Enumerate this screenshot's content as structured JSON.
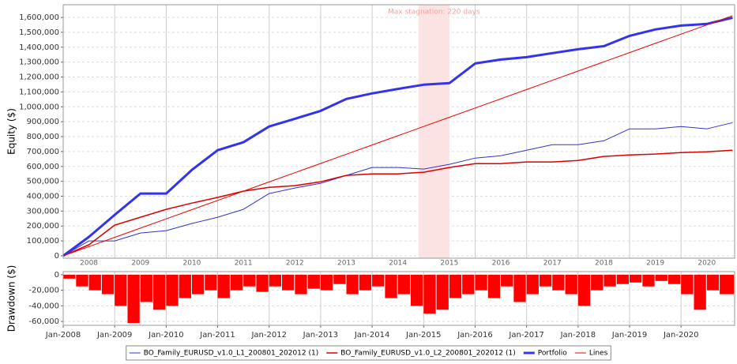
{
  "chart_data": [
    {
      "type": "line",
      "ylabel": "Equity ($)",
      "x": [
        2008,
        2008.5,
        2009,
        2009.5,
        2010,
        2010.5,
        2011,
        2011.5,
        2012,
        2012.5,
        2013,
        2013.5,
        2014,
        2014.5,
        2015,
        2015.5,
        2016,
        2016.5,
        2017,
        2017.5,
        2018,
        2018.5,
        2019,
        2019.5,
        2020,
        2020.5,
        2021
      ],
      "series": [
        {
          "name": "BO_Family_EURUSD_v1.0_L1_200801_202012 (1)",
          "color": "#3333cc",
          "linewidth": 1,
          "values": [
            0,
            100000,
            100000,
            153000,
            169000,
            217000,
            259000,
            312000,
            418000,
            455000,
            487000,
            540000,
            593000,
            593000,
            582000,
            614000,
            656000,
            672000,
            709000,
            746000,
            746000,
            772000,
            852000,
            852000,
            868000,
            852000,
            894000
          ]
        },
        {
          "name": "BO_Family_EURUSD_v1.0_L2_200801_202012 (1)",
          "color": "#dd0000",
          "linewidth": 1.5,
          "values": [
            0,
            74000,
            206000,
            259000,
            312000,
            354000,
            392000,
            434000,
            460000,
            471000,
            497000,
            540000,
            550000,
            550000,
            561000,
            593000,
            619000,
            619000,
            630000,
            630000,
            640000,
            667000,
            677000,
            683000,
            693000,
            698000,
            709000
          ]
        },
        {
          "name": "Portfolio",
          "color": "#3333ee",
          "linewidth": 3,
          "values": [
            0,
            127000,
            275000,
            418000,
            418000,
            577000,
            709000,
            762000,
            868000,
            920000,
            973000,
            1053000,
            1090000,
            1120000,
            1148000,
            1159000,
            1291000,
            1317000,
            1333000,
            1360000,
            1386000,
            1407000,
            1476000,
            1519000,
            1545000,
            1556000,
            1598000
          ]
        },
        {
          "name": "Lines",
          "color": "#ee0000",
          "linewidth": 1,
          "values": [
            0,
            62000,
            124000,
            186000,
            248000,
            310000,
            372000,
            434000,
            496000,
            558000,
            620000,
            682000,
            744000,
            806000,
            868000,
            930000,
            992000,
            1054000,
            1116000,
            1178000,
            1240000,
            1302000,
            1364000,
            1426000,
            1488000,
            1550000,
            1612000
          ]
        }
      ],
      "stagnation": {
        "start": 2014.9,
        "end": 2015.5,
        "label": "Max stagnation: 220 days"
      },
      "xlim": [
        2008,
        2021.04
      ],
      "ylim": [
        -16000,
        1685000
      ],
      "xticks": [
        {
          "value": 2008.5,
          "label": "2008"
        },
        {
          "value": 2009.5,
          "label": "2009"
        },
        {
          "value": 2010.5,
          "label": "2010"
        },
        {
          "value": 2011.5,
          "label": "2011"
        },
        {
          "value": 2012.5,
          "label": "2012"
        },
        {
          "value": 2013.5,
          "label": "2013"
        },
        {
          "value": 2014.5,
          "label": "2014"
        },
        {
          "value": 2015.5,
          "label": "2015"
        },
        {
          "value": 2016.5,
          "label": "2016"
        },
        {
          "value": 2017.5,
          "label": "2017"
        },
        {
          "value": 2018.5,
          "label": "2018"
        },
        {
          "value": 2019.5,
          "label": "2019"
        },
        {
          "value": 2020.5,
          "label": "2020"
        }
      ],
      "yticks": [
        0,
        {
          "value": 100000,
          "label": "100,000"
        },
        {
          "value": 200000,
          "label": "200,000"
        },
        {
          "value": 300000,
          "label": "300,000"
        },
        {
          "value": 400000,
          "label": "400,000"
        },
        {
          "value": 500000,
          "label": "500,000"
        },
        {
          "value": 600000,
          "label": "600,000"
        },
        {
          "value": 700000,
          "label": "700,000"
        },
        {
          "value": 800000,
          "label": "800,000"
        },
        {
          "value": 900000,
          "label": "900,000"
        },
        {
          "value": 1000000,
          "label": "1,000,000"
        },
        {
          "value": 1100000,
          "label": "1,100,000"
        },
        {
          "value": 1200000,
          "label": "1,200,000"
        },
        {
          "value": 1300000,
          "label": "1,300,000"
        },
        {
          "value": 1400000,
          "label": "1,400,000"
        },
        {
          "value": 1500000,
          "label": "1,500,000"
        },
        {
          "value": 1600000,
          "label": "1,600,000"
        }
      ],
      "grid": true,
      "legend": "bottom"
    },
    {
      "type": "bar",
      "ylabel": "Drawdown ($)",
      "color": "#ff0000",
      "x": [
        2008,
        2008.25,
        2008.5,
        2008.75,
        2009,
        2009.25,
        2009.5,
        2009.75,
        2010,
        2010.25,
        2010.5,
        2010.75,
        2011,
        2011.25,
        2011.5,
        2011.75,
        2012,
        2012.25,
        2012.5,
        2012.75,
        2013,
        2013.25,
        2013.5,
        2013.75,
        2014,
        2014.25,
        2014.5,
        2014.75,
        2015,
        2015.25,
        2015.5,
        2015.75,
        2016,
        2016.25,
        2016.5,
        2016.75,
        2017,
        2017.25,
        2017.5,
        2017.75,
        2018,
        2018.25,
        2018.5,
        2018.75,
        2019,
        2019.25,
        2019.5,
        2019.75,
        2020,
        2020.25,
        2020.5,
        2020.75
      ],
      "values": [
        -5000,
        -15000,
        -20000,
        -25000,
        -40000,
        -62000,
        -35000,
        -45000,
        -40000,
        -30000,
        -25000,
        -20000,
        -30000,
        -20000,
        -15000,
        -22000,
        -15000,
        -20000,
        -25000,
        -18000,
        -20000,
        -12000,
        -25000,
        -20000,
        -15000,
        -30000,
        -25000,
        -40000,
        -50000,
        -45000,
        -30000,
        -25000,
        -20000,
        -30000,
        -15000,
        -35000,
        -25000,
        -15000,
        -20000,
        -25000,
        -40000,
        -20000,
        -15000,
        -12000,
        -10000,
        -15000,
        -8000,
        -12000,
        -25000,
        -45000,
        -20000,
        -25000
      ],
      "xlim": [
        2008,
        2021.04
      ],
      "ylim": [
        -65000,
        4000
      ],
      "xticks": [
        {
          "value": 2008,
          "label": "Jan-2008"
        },
        {
          "value": 2009,
          "label": "Jan-2009"
        },
        {
          "value": 2010,
          "label": "Jan-2010"
        },
        {
          "value": 2011,
          "label": "Jan-2011"
        },
        {
          "value": 2012,
          "label": "Jan-2012"
        },
        {
          "value": 2013,
          "label": "Jan-2013"
        },
        {
          "value": 2014,
          "label": "Jan-2014"
        },
        {
          "value": 2015,
          "label": "Jan-2015"
        },
        {
          "value": 2016,
          "label": "Jan-2016"
        },
        {
          "value": 2017,
          "label": "Jan-2017"
        },
        {
          "value": 2018,
          "label": "Jan-2018"
        },
        {
          "value": 2019,
          "label": "Jan-2019"
        },
        {
          "value": 2020,
          "label": "Jan-2020"
        }
      ],
      "yticks": [
        0,
        {
          "value": -20000,
          "label": "-20,000"
        },
        {
          "value": -40000,
          "label": "-40,000"
        },
        {
          "value": -60000,
          "label": "-60,000"
        }
      ],
      "grid": true
    }
  ]
}
